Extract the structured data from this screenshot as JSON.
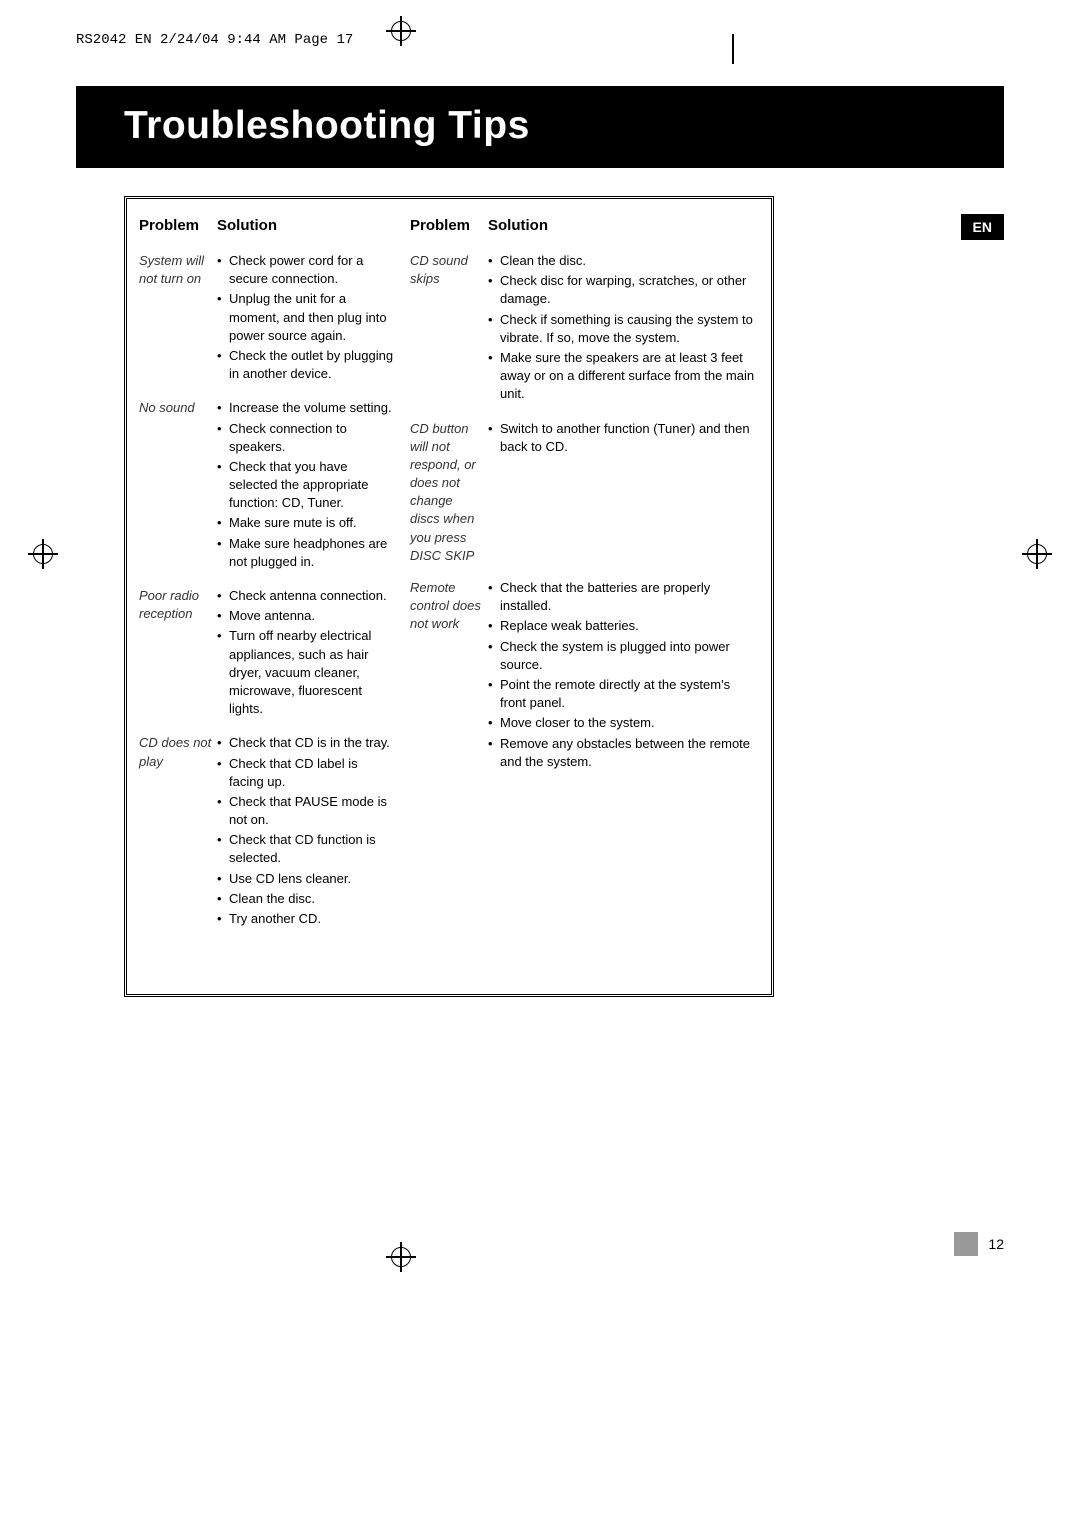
{
  "print_header": "RS2042 EN  2/24/04  9:44 AM  Page 17",
  "title": "Troubleshooting Tips",
  "lang_badge": "EN",
  "page_number": "12",
  "headers": {
    "problem": "Problem",
    "solution": "Solution"
  },
  "left_column": [
    {
      "problem": "System will not turn on",
      "solutions": [
        "Check power cord for a secure connection.",
        "Unplug the unit for a moment, and then plug into power source again.",
        "Check the outlet by plugging in another device."
      ]
    },
    {
      "problem": "No sound",
      "solutions": [
        "Increase the volume setting.",
        "Check connection to speakers.",
        "Check that you have selected the appropriate function: CD, Tuner.",
        "Make sure mute is off.",
        "Make sure headphones are not plugged in."
      ]
    },
    {
      "problem": "Poor radio reception",
      "solutions": [
        "Check antenna connection.",
        "Move antenna.",
        "Turn off nearby electrical appliances, such as hair dryer, vacuum cleaner, microwave, fluorescent lights."
      ]
    },
    {
      "problem": "CD does not play",
      "solutions": [
        "Check that CD is in the tray.",
        "Check that CD label is facing up.",
        "Check that PAUSE mode is not on.",
        "Check that CD function is selected.",
        "Use CD lens cleaner.",
        "Clean the disc.",
        "Try another CD."
      ]
    }
  ],
  "right_column": [
    {
      "problem": "CD sound skips",
      "solutions": [
        "Clean the disc.",
        "Check disc for warping, scratches, or other damage.",
        "Check if something is causing the system to  vibrate. If so, move the  system.",
        "Make sure the speakers are at least 3 feet away or on a different surface from the main unit."
      ]
    },
    {
      "problem": "CD button will not respond, or does not change discs when you press DISC SKIP",
      "solutions": [
        "Switch to another function (Tuner) and then back to CD."
      ]
    },
    {
      "problem": "Remote control does not work",
      "solutions": [
        "Check that the batteries are properly installed.",
        "Replace weak batteries.",
        "Check the system is plugged into power source.",
        "Point the remote directly at the system's front panel.",
        "Move closer to the system.",
        "Remove any obstacles between the remote and the system."
      ]
    }
  ]
}
